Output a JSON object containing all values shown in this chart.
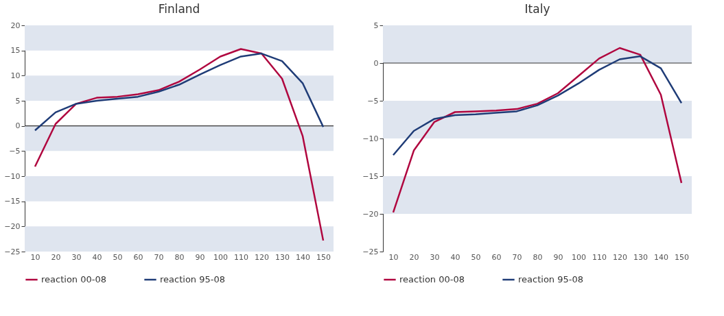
{
  "chart_data": [
    {
      "type": "line",
      "title": "Finland",
      "categories": [
        "10",
        "20",
        "30",
        "40",
        "50",
        "60",
        "70",
        "80",
        "90",
        "100",
        "110",
        "120",
        "130",
        "140",
        "150"
      ],
      "ylim": [
        -25,
        20
      ],
      "yticks": [
        -25,
        -20,
        -15,
        -10,
        -5,
        0,
        5,
        10,
        15,
        20
      ],
      "grid": false,
      "legend": "bottom",
      "series": [
        {
          "name": "reaction 00-08",
          "color": "#b0063f",
          "values": [
            -8.1,
            0.4,
            4.4,
            5.6,
            5.8,
            6.3,
            7.1,
            8.8,
            11.2,
            13.8,
            15.3,
            14.4,
            9.4,
            -2.0,
            -22.8
          ]
        },
        {
          "name": "reaction 95-08",
          "color": "#1f3c77",
          "values": [
            -0.9,
            2.7,
            4.4,
            5.0,
            5.4,
            5.8,
            6.8,
            8.2,
            10.2,
            12.1,
            13.8,
            14.4,
            12.9,
            8.5,
            -0.2
          ]
        }
      ],
      "ref_lines": [
        {
          "axis": "y",
          "value": 0,
          "color": "#333333"
        }
      ],
      "bands": [
        {
          "axis": "y",
          "from": 15,
          "to": 20,
          "color": "#dfe5ef"
        },
        {
          "axis": "y",
          "from": 5,
          "to": 10,
          "color": "#dfe5ef"
        },
        {
          "axis": "y",
          "from": -5,
          "to": 0,
          "color": "#dfe5ef"
        },
        {
          "axis": "y",
          "from": -15,
          "to": -10,
          "color": "#dfe5ef"
        },
        {
          "axis": "y",
          "from": -25,
          "to": -20,
          "color": "#dfe5ef"
        }
      ]
    },
    {
      "type": "line",
      "title": "Italy",
      "categories": [
        "10",
        "20",
        "30",
        "40",
        "50",
        "60",
        "70",
        "80",
        "90",
        "100",
        "110",
        "120",
        "130",
        "140",
        "150"
      ],
      "ylim": [
        -25,
        5
      ],
      "yticks": [
        -25,
        -20,
        -15,
        -10,
        -5,
        0,
        5
      ],
      "grid": false,
      "legend": "bottom",
      "series": [
        {
          "name": "reaction 00-08",
          "color": "#b0063f",
          "values": [
            -19.8,
            -11.6,
            -7.8,
            -6.5,
            -6.4,
            -6.3,
            -6.1,
            -5.4,
            -4.0,
            -1.7,
            0.6,
            2.0,
            1.1,
            -4.2,
            -15.9
          ]
        },
        {
          "name": "reaction 95-08",
          "color": "#1f3c77",
          "values": [
            -12.2,
            -9.0,
            -7.4,
            -6.9,
            -6.8,
            -6.6,
            -6.4,
            -5.6,
            -4.3,
            -2.7,
            -0.9,
            0.5,
            0.9,
            -0.7,
            -5.3
          ]
        }
      ],
      "ref_lines": [
        {
          "axis": "y",
          "value": 0,
          "color": "#333333"
        }
      ],
      "bands": [
        {
          "axis": "y",
          "from": 0,
          "to": 5,
          "color": "#dfe5ef"
        },
        {
          "axis": "y",
          "from": -10,
          "to": -5,
          "color": "#dfe5ef"
        },
        {
          "axis": "y",
          "from": -20,
          "to": -15,
          "color": "#dfe5ef"
        }
      ]
    }
  ]
}
